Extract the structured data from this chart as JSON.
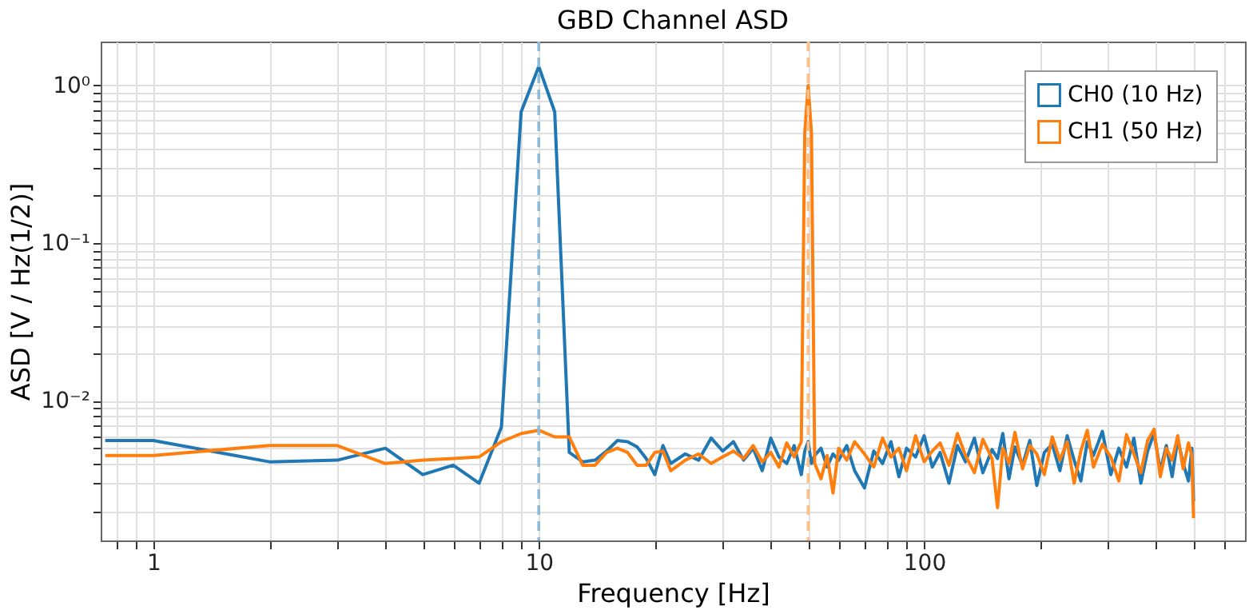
{
  "chart_data": {
    "type": "line",
    "title": "GBD Channel ASD",
    "xlabel": "Frequency [Hz]",
    "ylabel": "ASD [V / Hz(1/2)]",
    "log": "xy",
    "grid": true,
    "legend": "top right",
    "marker": "none",
    "line_style": "solid",
    "xlim": [
      0.73,
      680
    ],
    "ylim": [
      0.0013,
      1.9
    ],
    "xticks": [
      {
        "value": 0.8,
        "label": null
      },
      {
        "value": 0.9,
        "label": null
      },
      1,
      {
        "value": 2,
        "label": null
      },
      {
        "value": 3,
        "label": null
      },
      {
        "value": 4,
        "label": null
      },
      {
        "value": 5,
        "label": null
      },
      {
        "value": 6,
        "label": null
      },
      {
        "value": 7,
        "label": null
      },
      {
        "value": 8,
        "label": null
      },
      {
        "value": 9,
        "label": null
      },
      10,
      {
        "value": 20,
        "label": null
      },
      {
        "value": 30,
        "label": null
      },
      {
        "value": 40,
        "label": null
      },
      {
        "value": 50,
        "label": null
      },
      {
        "value": 60,
        "label": null
      },
      {
        "value": 70,
        "label": null
      },
      {
        "value": 80,
        "label": null
      },
      {
        "value": 90,
        "label": null
      },
      100,
      {
        "value": 200,
        "label": null
      },
      {
        "value": 300,
        "label": null
      },
      {
        "value": 400,
        "label": null
      },
      {
        "value": 500,
        "label": null
      },
      {
        "value": 600,
        "label": null
      }
    ],
    "yticks": [
      {
        "value": 0.002,
        "label": null
      },
      {
        "value": 0.003,
        "label": null
      },
      {
        "value": 0.004,
        "label": null
      },
      {
        "value": 0.005,
        "label": null
      },
      {
        "value": 0.006,
        "label": null
      },
      {
        "value": 0.007,
        "label": null
      },
      {
        "value": 0.008,
        "label": null
      },
      {
        "value": 0.009,
        "label": null
      },
      {
        "value": 0.01,
        "label": "10⁻²"
      },
      {
        "value": 0.02,
        "label": null
      },
      {
        "value": 0.03,
        "label": null
      },
      {
        "value": 0.04,
        "label": null
      },
      {
        "value": 0.05,
        "label": null
      },
      {
        "value": 0.06,
        "label": null
      },
      {
        "value": 0.07,
        "label": null
      },
      {
        "value": 0.08,
        "label": null
      },
      {
        "value": 0.09,
        "label": null
      },
      {
        "value": 0.1,
        "label": "10⁻¹"
      },
      {
        "value": 0.2,
        "label": null
      },
      {
        "value": 0.3,
        "label": null
      },
      {
        "value": 0.4,
        "label": null
      },
      {
        "value": 0.5,
        "label": null
      },
      {
        "value": 0.6,
        "label": null
      },
      {
        "value": 0.7,
        "label": null
      },
      {
        "value": 0.8,
        "label": null
      },
      {
        "value": 0.9,
        "label": null
      },
      {
        "value": 1,
        "label": "10⁰"
      }
    ],
    "x": [
      0.75,
      1,
      2,
      3,
      4,
      5,
      6,
      7,
      8,
      9,
      10,
      11,
      12,
      13,
      14,
      15,
      16,
      17,
      18,
      19,
      20,
      21,
      22,
      24,
      26,
      28,
      30,
      32,
      34,
      36,
      38,
      40,
      42,
      44,
      46,
      48,
      49,
      50,
      51,
      52,
      54,
      56,
      58,
      60,
      63,
      66,
      70,
      74,
      78,
      82,
      86,
      90,
      95,
      100,
      105,
      110,
      116,
      122,
      128,
      135,
      142,
      150,
      155,
      160,
      166,
      172,
      180,
      188,
      196,
      205,
      215,
      225,
      235,
      245,
      255,
      265,
      275,
      290,
      305,
      320,
      335,
      350,
      365,
      380,
      395,
      410,
      425,
      440,
      455,
      470,
      485,
      495,
      500
    ],
    "series": [
      {
        "name": "CH0 (10 Hz)",
        "color": "#1f77b4",
        "values": [
          0.0056,
          0.0056,
          0.0041,
          0.0042,
          0.005,
          0.0034,
          0.0039,
          0.003,
          0.0068,
          0.68,
          1.32,
          0.68,
          0.0047,
          0.0041,
          0.0042,
          0.0048,
          0.0056,
          0.0055,
          0.0051,
          0.0043,
          0.0034,
          0.0052,
          0.004,
          0.0046,
          0.0042,
          0.0058,
          0.0048,
          0.0055,
          0.0042,
          0.005,
          0.0036,
          0.0058,
          0.0044,
          0.004,
          0.0052,
          0.0034,
          0.0048,
          0.0055,
          0.004,
          0.0045,
          0.005,
          0.0038,
          0.0046,
          0.0042,
          0.0052,
          0.0036,
          0.0028,
          0.0048,
          0.004,
          0.0055,
          0.0033,
          0.005,
          0.0044,
          0.006,
          0.0038,
          0.0047,
          0.003,
          0.0052,
          0.0041,
          0.0058,
          0.0035,
          0.0049,
          0.0043,
          0.0062,
          0.0032,
          0.0051,
          0.0039,
          0.0056,
          0.0029,
          0.0047,
          0.0053,
          0.0036,
          0.006,
          0.0042,
          0.0031,
          0.0055,
          0.0045,
          0.0064,
          0.0034,
          0.005,
          0.0038,
          0.0058,
          0.003,
          0.0048,
          0.0062,
          0.0036,
          0.0052,
          0.0033,
          0.0057,
          0.004,
          0.0031,
          0.005,
          0.0023
        ]
      },
      {
        "name": "CH1 (50 Hz)",
        "color": "#ff7f0e",
        "values": [
          0.0045,
          0.0045,
          0.0052,
          0.0052,
          0.004,
          0.0042,
          0.0043,
          0.0044,
          0.0055,
          0.0062,
          0.0065,
          0.0059,
          0.0059,
          0.0039,
          0.0039,
          0.0047,
          0.005,
          0.0047,
          0.0039,
          0.0039,
          0.0047,
          0.0048,
          0.0036,
          0.0042,
          0.0046,
          0.004,
          0.0044,
          0.0048,
          0.0043,
          0.0052,
          0.0041,
          0.0047,
          0.0038,
          0.0054,
          0.0044,
          0.0055,
          0.5,
          1.0,
          0.5,
          0.004,
          0.0032,
          0.0045,
          0.0026,
          0.005,
          0.0042,
          0.0055,
          0.0046,
          0.0038,
          0.0058,
          0.0044,
          0.005,
          0.0036,
          0.006,
          0.0041,
          0.0048,
          0.0054,
          0.0039,
          0.0062,
          0.0045,
          0.0035,
          0.0057,
          0.0043,
          0.0021,
          0.005,
          0.004,
          0.0063,
          0.0037,
          0.0052,
          0.0046,
          0.0034,
          0.0059,
          0.0042,
          0.0055,
          0.003,
          0.0048,
          0.0065,
          0.0038,
          0.0053,
          0.0044,
          0.0031,
          0.0061,
          0.0046,
          0.0035,
          0.0056,
          0.0066,
          0.0033,
          0.005,
          0.0042,
          0.006,
          0.0037,
          0.0054,
          0.0045,
          0.0018
        ]
      }
    ],
    "ref_lines": [
      {
        "axis": "x",
        "value": 10,
        "color": "#8fbbd9",
        "line_style": "dashed"
      },
      {
        "axis": "x",
        "value": 50,
        "color": "#ffbf86",
        "line_style": "dashed"
      }
    ]
  }
}
